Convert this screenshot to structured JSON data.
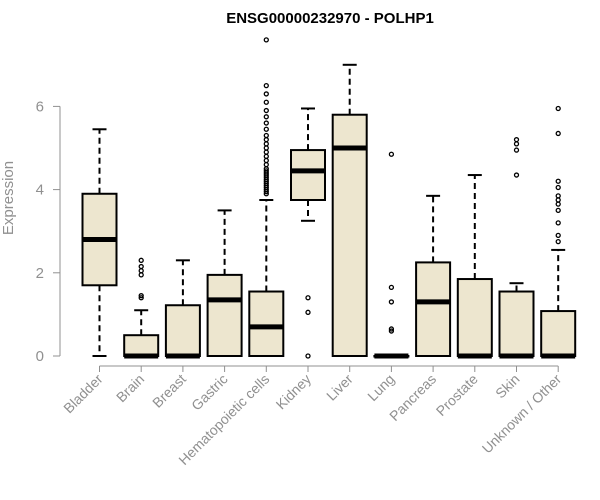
{
  "chart_data": {
    "type": "box",
    "title": "ENSG00000232970 - POLHP1",
    "ylabel": "Expression",
    "xlabel": "",
    "ylim": [
      0,
      7.5
    ],
    "yticks": [
      0,
      2,
      4,
      6
    ],
    "box_fill": "#ede6cf",
    "categories": [
      "Bladder",
      "Brain",
      "Breast",
      "Gastric",
      "Hematopoietic cells",
      "Kidney",
      "Liver",
      "Lung",
      "Pancreas",
      "Prostate",
      "Skin",
      "Unknown / Other"
    ],
    "boxes": [
      {
        "whisker_low": 0,
        "q1": 1.7,
        "median": 2.8,
        "q3": 3.9,
        "whisker_high": 5.45,
        "outliers": []
      },
      {
        "whisker_low": 0,
        "q1": 0,
        "median": 0,
        "q3": 0.5,
        "whisker_high": 1.1,
        "outliers": [
          1.4,
          1.45,
          1.95,
          2.05,
          2.15,
          2.3
        ]
      },
      {
        "whisker_low": 0,
        "q1": 0,
        "median": 0,
        "q3": 1.22,
        "whisker_high": 2.3,
        "outliers": []
      },
      {
        "whisker_low": 0,
        "q1": 0,
        "median": 1.35,
        "q3": 1.95,
        "whisker_high": 3.5,
        "outliers": []
      },
      {
        "whisker_low": 0,
        "q1": 0,
        "median": 0.7,
        "q3": 1.55,
        "whisker_high": 3.75,
        "outliers": [
          3.9,
          3.95,
          4.0,
          4.05,
          4.1,
          4.15,
          4.2,
          4.25,
          4.3,
          4.35,
          4.4,
          4.45,
          4.5,
          4.6,
          4.7,
          4.8,
          4.9,
          5.0,
          5.1,
          5.2,
          5.3,
          5.45,
          5.6,
          5.75,
          5.9,
          6.1,
          6.3,
          6.5,
          7.6
        ]
      },
      {
        "whisker_low": 3.25,
        "q1": 3.75,
        "median": 4.45,
        "q3": 4.95,
        "whisker_high": 5.95,
        "outliers": [
          0,
          1.05,
          1.4
        ]
      },
      {
        "whisker_low": 0,
        "q1": 0,
        "median": 5.0,
        "q3": 5.8,
        "whisker_high": 7.0,
        "outliers": []
      },
      {
        "whisker_low": 0,
        "q1": 0,
        "median": 0,
        "q3": 0,
        "whisker_high": 0,
        "outliers": [
          0.6,
          0.65,
          1.3,
          1.65,
          4.85
        ]
      },
      {
        "whisker_low": 0,
        "q1": 0,
        "median": 1.3,
        "q3": 2.25,
        "whisker_high": 3.85,
        "outliers": []
      },
      {
        "whisker_low": 0,
        "q1": 0,
        "median": 0,
        "q3": 1.85,
        "whisker_high": 4.35,
        "outliers": []
      },
      {
        "whisker_low": 0,
        "q1": 0,
        "median": 0,
        "q3": 1.55,
        "whisker_high": 1.75,
        "outliers": [
          4.35,
          4.95,
          5.1,
          5.2
        ]
      },
      {
        "whisker_low": 0,
        "q1": 0,
        "median": 0,
        "q3": 1.08,
        "whisker_high": 2.55,
        "outliers": [
          2.75,
          2.9,
          3.2,
          3.5,
          3.65,
          3.75,
          3.85,
          4.05,
          4.2,
          5.35,
          5.95
        ]
      }
    ]
  }
}
